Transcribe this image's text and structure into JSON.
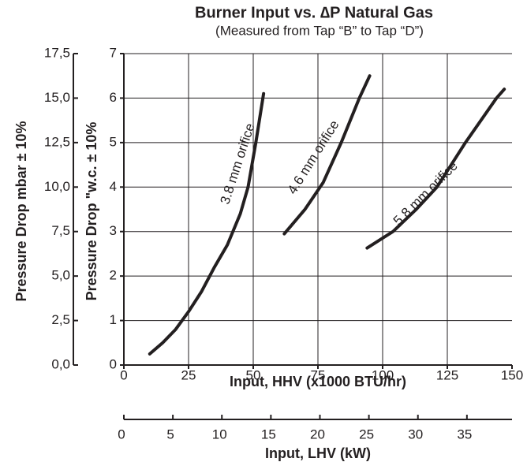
{
  "chart_data": {
    "type": "line",
    "title": "Burner Input vs. ∆P Natural Gas",
    "subtitle": "(Measured from Tap “B” to Tap “D”)",
    "xlabel": "Input, HHV (x1000 BTU/hr)",
    "ylabel": "Pressure Drop \"w.c. ± 10%",
    "y2label": "Pressure Drop mbar ± 10%",
    "x2label": "Input, LHV (kW)",
    "xlim": [
      0,
      150
    ],
    "xticks": [
      0,
      25,
      50,
      75,
      100,
      125,
      150
    ],
    "ylim": [
      0,
      7
    ],
    "yticks": [
      0,
      1,
      2,
      3,
      4,
      5,
      6,
      7
    ],
    "y2lim": [
      0,
      17.5
    ],
    "y2ticks": [
      {
        "value": 0,
        "label": "0,0"
      },
      {
        "value": 2.5,
        "label": "2,5"
      },
      {
        "value": 5,
        "label": "5,0"
      },
      {
        "value": 7.5,
        "label": "7,5"
      },
      {
        "value": 10,
        "label": "10,0"
      },
      {
        "value": 12.5,
        "label": "12,5"
      },
      {
        "value": 15,
        "label": "15,0"
      },
      {
        "value": 17.5,
        "label": "17,5"
      }
    ],
    "x2lim": [
      0,
      39.6
    ],
    "x2ticks": [
      0,
      5,
      10,
      15,
      20,
      25,
      30,
      35
    ],
    "grid": true,
    "color": "#231f20",
    "series": [
      {
        "name": "3.8 mm orifice",
        "x": [
          10,
          15,
          20,
          25,
          30,
          35,
          40,
          45,
          48,
          51,
          54
        ],
        "values": [
          0.25,
          0.5,
          0.8,
          1.2,
          1.65,
          2.2,
          2.7,
          3.4,
          4.0,
          5.0,
          6.1
        ]
      },
      {
        "name": "4.6 mm orifice",
        "x": [
          62,
          70,
          77,
          84,
          91,
          95
        ],
        "values": [
          2.95,
          3.5,
          4.1,
          5.0,
          6.0,
          6.5
        ]
      },
      {
        "name": "5.8 mm orifice",
        "x": [
          94,
          104,
          113,
          121,
          132,
          144,
          147
        ],
        "values": [
          2.63,
          3.0,
          3.5,
          4.0,
          5.0,
          6.0,
          6.2
        ]
      }
    ]
  }
}
